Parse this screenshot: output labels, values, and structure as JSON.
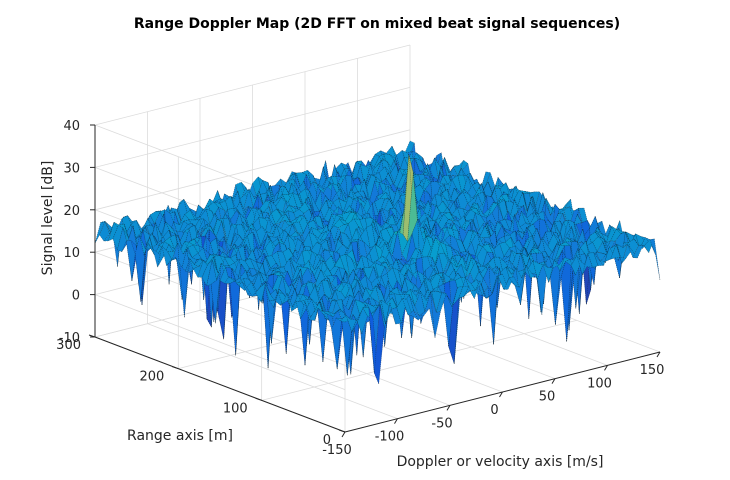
{
  "chart_data": {
    "type": "surface",
    "title": "Range Doppler Map (2D FFT on mixed beat signal sequences)",
    "xlabel": "Doppler or velocity axis [m/s]",
    "ylabel": "Range axis [m]",
    "zlabel": "Signal level [dB]",
    "xlim": [
      -150,
      150
    ],
    "ylim": [
      0,
      300
    ],
    "zlim": [
      -10,
      40
    ],
    "xticks": [
      "-150",
      "-100",
      "-50",
      "0",
      "50",
      "100",
      "150"
    ],
    "yticks": [
      "0",
      "100",
      "200",
      "300"
    ],
    "zticks": [
      "-10",
      "0",
      "10",
      "20",
      "30",
      "40"
    ],
    "grid": true,
    "colormap": "parula",
    "noise_floor_db": 15,
    "peak": {
      "doppler": 0,
      "range": 110,
      "level_db": 35
    }
  }
}
